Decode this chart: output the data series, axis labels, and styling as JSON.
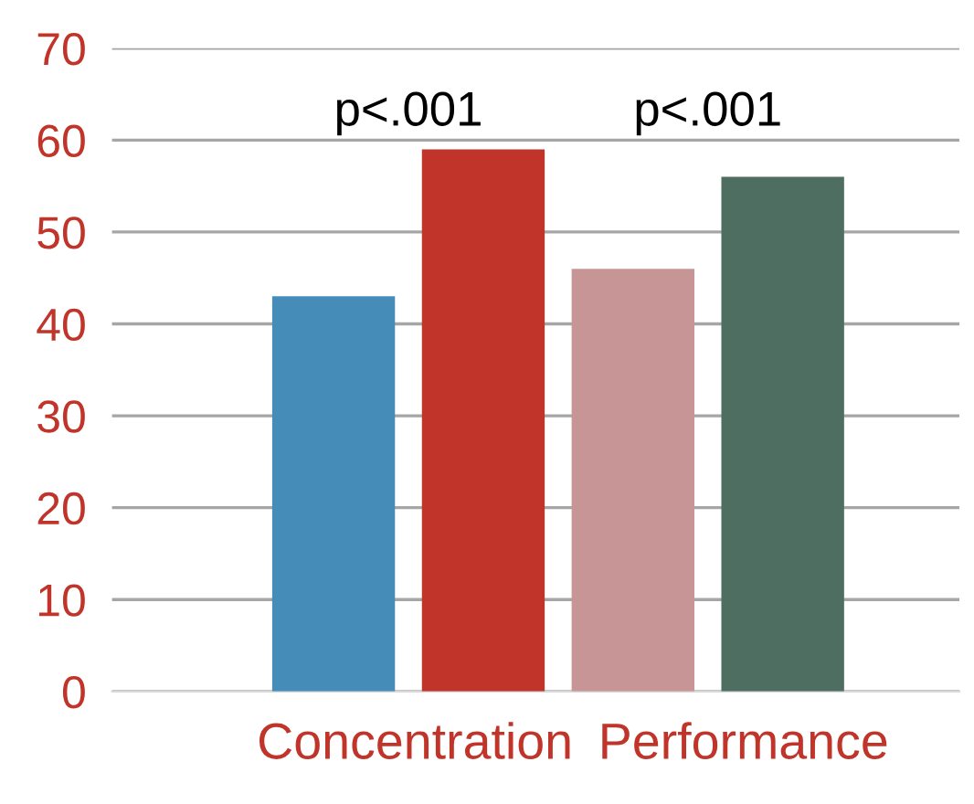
{
  "chart_data": {
    "type": "bar",
    "categories": [
      "Concentration",
      "Performance"
    ],
    "series": [
      {
        "colors": [
          "#458cb8",
          "#c89596"
        ],
        "values": [
          43,
          46
        ]
      },
      {
        "colors": [
          "#c0342a",
          "#4f6e62"
        ],
        "values": [
          59,
          56
        ]
      }
    ],
    "ylim": [
      0,
      70
    ],
    "yticks": [
      0,
      10,
      20,
      30,
      40,
      50,
      60,
      70
    ],
    "grid": "y",
    "legend": false,
    "annotations": [
      "p<.001",
      "p<.001"
    ]
  }
}
